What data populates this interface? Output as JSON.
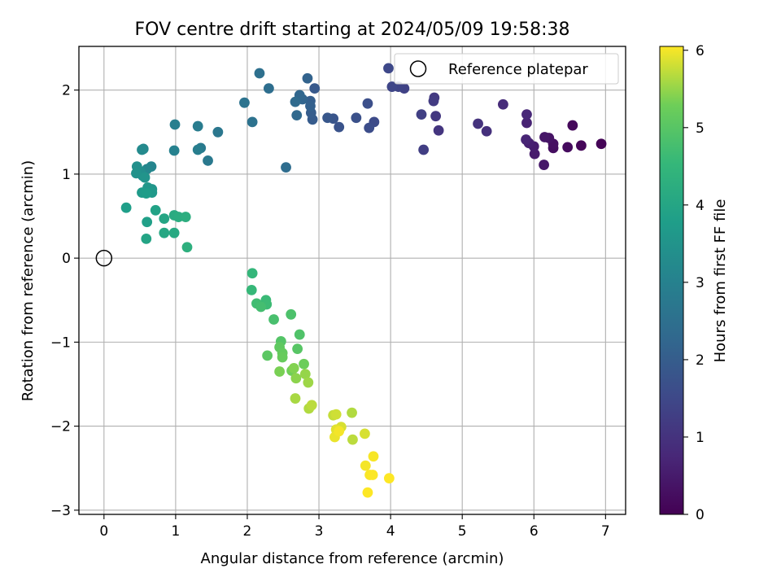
{
  "chart_data": {
    "type": "scatter",
    "title": "FOV centre drift starting at 2024/05/09 19:58:38",
    "xlabel": "Angular distance from reference (arcmin)",
    "ylabel": "Rotation from reference (arcmin)",
    "xlim": [
      -0.35,
      7.28
    ],
    "ylim": [
      -3.05,
      2.52
    ],
    "xticks": [
      0,
      1,
      2,
      3,
      4,
      5,
      6,
      7
    ],
    "xtick_labels": [
      "0",
      "1",
      "2",
      "3",
      "4",
      "5",
      "6",
      "7"
    ],
    "yticks": [
      -3,
      -2,
      -1,
      0,
      1,
      2
    ],
    "ytick_labels": [
      "−3",
      "−2",
      "−1",
      "0",
      "1",
      "2"
    ],
    "grid": true,
    "legend": {
      "placement": "top-right",
      "label": "Reference platepar"
    },
    "reference_point": {
      "x": 0,
      "y": 0
    },
    "colorbar": {
      "label": "Hours from first FF file",
      "min": 0,
      "max": 6.05,
      "ticks": [
        0,
        1,
        2,
        3,
        4,
        5,
        6
      ],
      "tick_labels": [
        "0",
        "1",
        "2",
        "3",
        "4",
        "5",
        "6"
      ],
      "colormap": "viridis"
    },
    "points": [
      [
        6.94,
        1.36,
        0.05
      ],
      [
        6.66,
        1.34,
        0.1
      ],
      [
        6.54,
        1.58,
        0.15
      ],
      [
        6.47,
        1.32,
        0.2
      ],
      [
        6.27,
        1.31,
        0.25
      ],
      [
        6.27,
        1.36,
        0.3
      ],
      [
        6.21,
        1.43,
        0.35
      ],
      [
        6.15,
        1.44,
        0.4
      ],
      [
        6.14,
        1.11,
        0.45
      ],
      [
        6.01,
        1.24,
        0.5
      ],
      [
        6.0,
        1.33,
        0.55
      ],
      [
        5.93,
        1.37,
        0.6
      ],
      [
        5.9,
        1.61,
        0.65
      ],
      [
        5.89,
        1.41,
        0.7
      ],
      [
        5.9,
        1.71,
        0.75
      ],
      [
        5.57,
        1.83,
        0.85
      ],
      [
        5.34,
        1.51,
        0.95
      ],
      [
        5.22,
        1.6,
        1.0
      ],
      [
        4.67,
        1.52,
        1.05
      ],
      [
        4.63,
        1.69,
        1.1
      ],
      [
        4.61,
        1.91,
        1.15
      ],
      [
        4.6,
        1.87,
        1.2
      ],
      [
        4.46,
        1.29,
        1.25
      ],
      [
        4.43,
        1.71,
        1.3
      ],
      [
        4.19,
        2.02,
        1.35
      ],
      [
        4.11,
        2.04,
        1.4
      ],
      [
        4.02,
        2.04,
        1.45
      ],
      [
        3.97,
        2.26,
        1.5
      ],
      [
        3.77,
        1.62,
        1.55
      ],
      [
        3.7,
        1.55,
        1.6
      ],
      [
        3.68,
        1.84,
        1.65
      ],
      [
        3.52,
        1.67,
        1.7
      ],
      [
        3.28,
        1.56,
        1.75
      ],
      [
        3.2,
        1.66,
        1.8
      ],
      [
        3.12,
        1.67,
        1.85
      ],
      [
        2.94,
        2.02,
        1.9
      ],
      [
        2.91,
        1.65,
        1.95
      ],
      [
        2.89,
        1.73,
        2.0
      ],
      [
        2.88,
        1.87,
        2.05
      ],
      [
        2.88,
        1.81,
        2.1
      ],
      [
        2.84,
        2.14,
        2.15
      ],
      [
        2.77,
        1.89,
        2.2
      ],
      [
        2.73,
        1.94,
        2.25
      ],
      [
        2.69,
        1.7,
        2.3
      ],
      [
        2.67,
        1.86,
        2.35
      ],
      [
        2.54,
        1.08,
        2.4
      ],
      [
        2.3,
        2.02,
        2.45
      ],
      [
        2.17,
        2.2,
        2.5
      ],
      [
        2.07,
        1.62,
        2.55
      ],
      [
        1.96,
        1.85,
        2.6
      ],
      [
        1.59,
        1.5,
        2.7
      ],
      [
        1.45,
        1.16,
        2.75
      ],
      [
        1.35,
        1.31,
        2.8
      ],
      [
        1.31,
        1.57,
        2.85
      ],
      [
        1.31,
        1.29,
        2.9
      ],
      [
        0.99,
        1.59,
        2.95
      ],
      [
        0.98,
        1.28,
        3.0
      ],
      [
        0.66,
        1.09,
        3.1
      ],
      [
        0.6,
        1.06,
        3.15
      ],
      [
        0.55,
        1.3,
        3.2
      ],
      [
        0.53,
        1.29,
        3.25
      ],
      [
        0.54,
        0.98,
        3.3
      ],
      [
        0.51,
        1.03,
        3.35
      ],
      [
        0.46,
        1.09,
        3.4
      ],
      [
        0.45,
        1.01,
        3.45
      ],
      [
        0.57,
        0.96,
        3.5
      ],
      [
        0.67,
        0.82,
        3.55
      ],
      [
        0.61,
        0.84,
        3.6
      ],
      [
        0.67,
        0.78,
        3.65
      ],
      [
        0.53,
        0.78,
        3.7
      ],
      [
        0.59,
        0.77,
        3.75
      ],
      [
        0.31,
        0.6,
        3.8
      ],
      [
        0.6,
        0.43,
        3.85
      ],
      [
        0.72,
        0.57,
        3.9
      ],
      [
        0.59,
        0.23,
        3.95
      ],
      [
        0.84,
        0.47,
        4.0
      ],
      [
        0.84,
        0.3,
        4.05
      ],
      [
        0.98,
        0.3,
        4.1
      ],
      [
        0.98,
        0.51,
        4.15
      ],
      [
        1.04,
        0.49,
        4.2
      ],
      [
        1.14,
        0.49,
        4.25
      ],
      [
        1.16,
        0.13,
        4.3
      ],
      [
        2.07,
        -0.18,
        4.5
      ],
      [
        2.06,
        -0.38,
        4.55
      ],
      [
        2.26,
        -0.5,
        4.6
      ],
      [
        2.27,
        -0.55,
        4.65
      ],
      [
        2.13,
        -0.54,
        4.7
      ],
      [
        2.19,
        -0.58,
        4.75
      ],
      [
        2.37,
        -0.73,
        4.8
      ],
      [
        2.61,
        -0.67,
        4.85
      ],
      [
        2.73,
        -0.91,
        4.9
      ],
      [
        2.47,
        -0.99,
        4.95
      ],
      [
        2.7,
        -1.08,
        5.0
      ],
      [
        2.28,
        -1.16,
        5.05
      ],
      [
        2.45,
        -1.06,
        5.1
      ],
      [
        2.49,
        -1.13,
        5.15
      ],
      [
        2.49,
        -1.18,
        5.2
      ],
      [
        2.79,
        -1.26,
        5.25
      ],
      [
        2.62,
        -1.34,
        5.3
      ],
      [
        2.45,
        -1.35,
        5.35
      ],
      [
        2.65,
        -1.31,
        5.4
      ],
      [
        2.68,
        -1.43,
        5.45
      ],
      [
        2.81,
        -1.38,
        5.5
      ],
      [
        2.85,
        -1.48,
        5.55
      ],
      [
        2.67,
        -1.67,
        5.6
      ],
      [
        2.86,
        -1.79,
        5.65
      ],
      [
        2.9,
        -1.75,
        5.7
      ],
      [
        3.2,
        -1.87,
        5.75
      ],
      [
        3.24,
        -1.86,
        5.8
      ],
      [
        3.31,
        -2.01,
        5.85
      ],
      [
        3.24,
        -2.04,
        5.9
      ],
      [
        3.22,
        -2.13,
        5.95
      ],
      [
        3.28,
        -2.06,
        6.0
      ],
      [
        3.47,
        -2.16,
        5.7
      ],
      [
        3.46,
        -1.84,
        5.65
      ],
      [
        3.64,
        -2.09,
        5.85
      ],
      [
        3.65,
        -2.47,
        6.0
      ],
      [
        3.76,
        -2.36,
        6.02
      ],
      [
        3.71,
        -2.58,
        6.03
      ],
      [
        3.75,
        -2.58,
        6.04
      ],
      [
        3.68,
        -2.79,
        6.05
      ],
      [
        3.98,
        -2.62,
        6.05
      ]
    ]
  }
}
